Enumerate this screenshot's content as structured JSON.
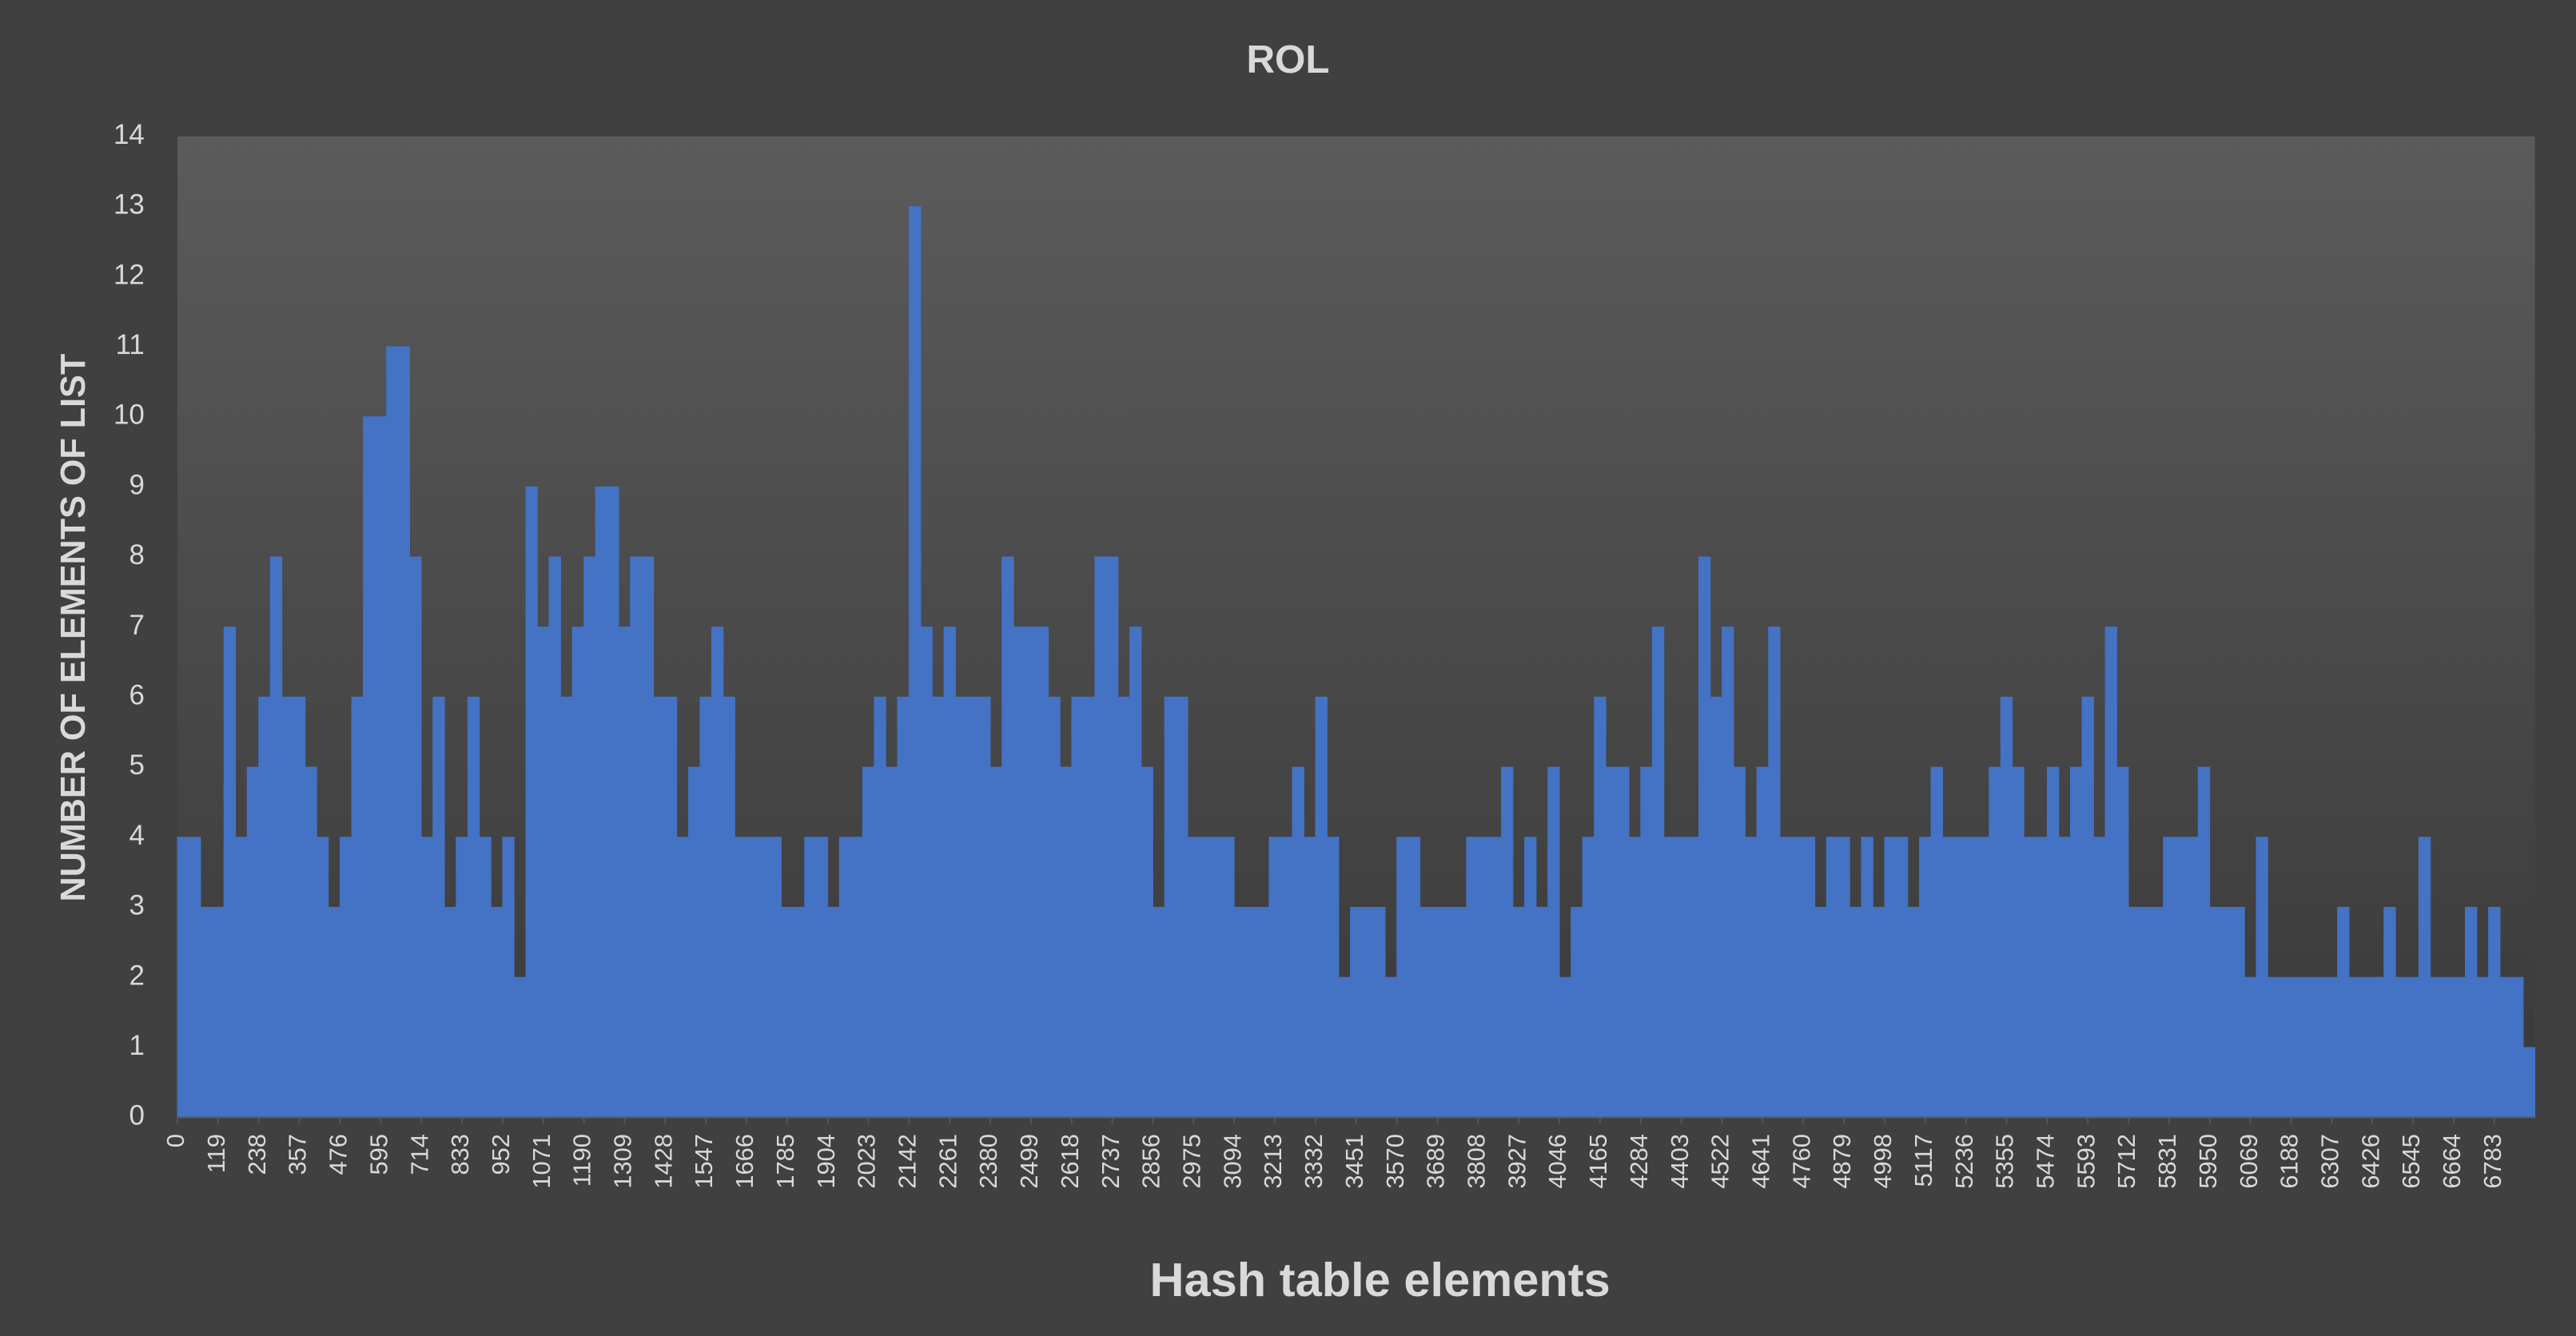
{
  "chart_data": {
    "type": "histogram",
    "title": "ROL",
    "x_label": "Hash table elements",
    "y_label": "NUMBER OF ELEMENTS OF LIST",
    "color": "#4472c4",
    "bins": [
      0,
      34,
      68,
      102,
      136,
      170,
      204,
      238,
      272,
      306,
      340,
      374,
      408,
      442,
      476,
      510,
      544,
      578,
      612,
      646,
      680,
      714,
      748,
      782,
      816,
      850,
      884,
      918,
      952,
      986,
      1020,
      1054,
      1088,
      1122,
      1156,
      1190,
      1224,
      1258,
      1292,
      1326,
      1360,
      1394,
      1428,
      1462,
      1496,
      1530,
      1564,
      1598,
      1632,
      1666,
      1700,
      1734,
      1768,
      1802,
      1836,
      1870,
      1904,
      1938,
      1972,
      2006,
      2040,
      2074,
      2108,
      2142,
      2176,
      2210,
      2244,
      2278,
      2312,
      2346,
      2380,
      2414,
      2448,
      2482,
      2516,
      2550,
      2584,
      2618,
      2652,
      2686,
      2720,
      2754,
      2788,
      2822,
      2856,
      2890,
      2924,
      2958,
      2992,
      3026,
      3060,
      3094,
      3128,
      3162,
      3196,
      3230,
      3264,
      3298,
      3332,
      3366,
      3400,
      3434,
      3468,
      3502,
      3536,
      3570,
      3604,
      3638,
      3672,
      3706,
      3740,
      3774,
      3808,
      3842,
      3876,
      3910,
      3944,
      3978,
      4012,
      4046,
      4080,
      4114,
      4148,
      4182,
      4216,
      4250,
      4284,
      4318,
      4352,
      4386,
      4420,
      4454,
      4488,
      4522,
      4556,
      4590,
      4624,
      4658,
      4692,
      4726,
      4760,
      4794,
      4828,
      4862,
      4896,
      4930,
      4964,
      4998,
      5032,
      5066,
      5100,
      5134,
      5168,
      5202,
      5236,
      5270,
      5304,
      5338,
      5372,
      5406,
      5440,
      5474,
      5508,
      5542,
      5576,
      5610,
      5644,
      5678,
      5712,
      5746,
      5780,
      5814,
      5848,
      5882,
      5916,
      5950,
      5984,
      6018,
      6052,
      6086,
      6120,
      6154,
      6188,
      6222,
      6256,
      6290,
      6324,
      6358,
      6392,
      6426,
      6460,
      6494,
      6528,
      6562,
      6596,
      6630,
      6664,
      6698,
      6732,
      6766,
      6800,
      6834,
      6868,
      6902
    ],
    "values": [
      4,
      4,
      3,
      3,
      7,
      4,
      5,
      6,
      8,
      6,
      6,
      5,
      4,
      3,
      4,
      6,
      10,
      10,
      11,
      11,
      8,
      4,
      6,
      3,
      4,
      6,
      4,
      3,
      4,
      2,
      9,
      7,
      8,
      6,
      7,
      8,
      9,
      9,
      7,
      8,
      8,
      6,
      6,
      4,
      5,
      6,
      7,
      6,
      4,
      4,
      4,
      4,
      3,
      3,
      4,
      4,
      3,
      4,
      4,
      5,
      6,
      5,
      6,
      13,
      7,
      6,
      7,
      6,
      6,
      6,
      5,
      8,
      7,
      7,
      7,
      6,
      5,
      6,
      6,
      8,
      8,
      6,
      7,
      5,
      3,
      6,
      6,
      4,
      4,
      4,
      4,
      3,
      3,
      3,
      4,
      4,
      5,
      4,
      6,
      4,
      2,
      3,
      3,
      3,
      2,
      4,
      4,
      3,
      3,
      3,
      3,
      4,
      4,
      4,
      5,
      3,
      4,
      3,
      5,
      2,
      3,
      4,
      6,
      5,
      5,
      4,
      5,
      7,
      4,
      4,
      4,
      8,
      6,
      7,
      5,
      4,
      5,
      7,
      4,
      4,
      4,
      3,
      4,
      4,
      3,
      4,
      3,
      4,
      4,
      3,
      4,
      5,
      4,
      4,
      4,
      4,
      5,
      6,
      5,
      4,
      4,
      5,
      4,
      5,
      6,
      4,
      7,
      5,
      3,
      3,
      3,
      4,
      4,
      4,
      5,
      3,
      3,
      3,
      2,
      4,
      2,
      2,
      2,
      2,
      2,
      2,
      3,
      2,
      2,
      2,
      3,
      2,
      2,
      4,
      2,
      2,
      2,
      3,
      2,
      3,
      2,
      2,
      1
    ],
    "xlim": [
      0,
      6902
    ],
    "xticks": [
      0,
      119,
      238,
      357,
      476,
      595,
      714,
      833,
      952,
      1071,
      1190,
      1309,
      1428,
      1547,
      1666,
      1785,
      1904,
      2023,
      2142,
      2261,
      2380,
      2499,
      2618,
      2737,
      2856,
      2975,
      3094,
      3213,
      3332,
      3451,
      3570,
      3689,
      3808,
      3927,
      4046,
      4165,
      4284,
      4403,
      4522,
      4641,
      4760,
      4879,
      4998,
      5117,
      5236,
      5355,
      5474,
      5593,
      5712,
      5831,
      5950,
      6069,
      6188,
      6307,
      6426,
      6545,
      6664,
      6783
    ],
    "ylim": [
      0,
      14
    ],
    "yticks": [
      0,
      1,
      2,
      3,
      4,
      5,
      6,
      7,
      8,
      9,
      10,
      11,
      12,
      13,
      14
    ]
  }
}
